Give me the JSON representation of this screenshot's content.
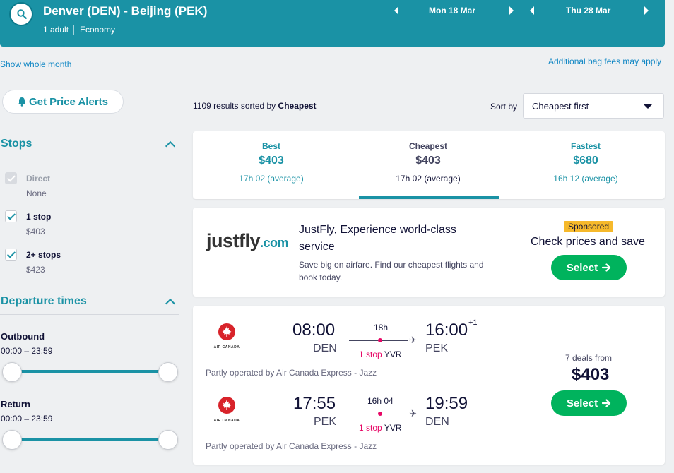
{
  "header": {
    "route": "Denver (DEN) - Beijing (PEK)",
    "passengers": "1 adult",
    "cabin": "Economy",
    "outbound_date": "Mon 18 Mar",
    "return_date": "Thu 28 Mar"
  },
  "links": {
    "show_whole_month": "Show whole month",
    "bag_fees": "Additional bag fees may apply"
  },
  "price_alerts": {
    "label": "Get Price Alerts"
  },
  "filters": {
    "stops": {
      "title": "Stops",
      "options": [
        {
          "label": "Direct",
          "price": "None",
          "checked": true,
          "disabled": true
        },
        {
          "label": "1 stop",
          "price": "$403",
          "checked": true,
          "disabled": false
        },
        {
          "label": "2+ stops",
          "price": "$423",
          "checked": true,
          "disabled": false
        }
      ]
    },
    "departure": {
      "title": "Departure times",
      "outbound_label": "Outbound",
      "outbound_range": "00:00 – 23:59",
      "return_label": "Return",
      "return_range": "00:00 – 23:59"
    }
  },
  "results": {
    "count_text": "1109 results sorted by",
    "sorted_by": "Cheapest",
    "sort_label": "Sort by",
    "sort_value": "Cheapest first"
  },
  "tabs": [
    {
      "label": "Best",
      "price": "$403",
      "duration": "17h 02 (average)"
    },
    {
      "label": "Cheapest",
      "price": "$403",
      "duration": "17h 02 (average)"
    },
    {
      "label": "Fastest",
      "price": "$680",
      "duration": "16h 12 (average)"
    }
  ],
  "ad": {
    "logo_main": "justfly",
    "logo_suffix": ".com",
    "title": "JustFly, Experience world-class service",
    "description": "Save big on airfare. Find our cheapest flights and book today.",
    "badge": "Sponsored",
    "cta_text": "Check prices and save",
    "button_label": "Select"
  },
  "flight": {
    "airline_name": "AIR CANADA",
    "legs": [
      {
        "depart_time": "08:00",
        "depart_code": "DEN",
        "arrive_time": "16:00",
        "arrive_offset": "+1",
        "arrive_code": "PEK",
        "duration": "18h",
        "stops": "1 stop",
        "via": "YVR",
        "operated_by": "Partly operated by Air Canada Express - Jazz"
      },
      {
        "depart_time": "17:55",
        "depart_code": "PEK",
        "arrive_time": "19:59",
        "arrive_offset": "",
        "arrive_code": "DEN",
        "duration": "16h 04",
        "stops": "1 stop",
        "via": "YVR",
        "operated_by": "Partly operated by Air Canada Express - Jazz"
      }
    ],
    "deals": "7 deals from",
    "price": "$403",
    "button_label": "Select"
  },
  "colors": {
    "brand": "#1a92a5",
    "cta": "#00b35d",
    "stop": "#e70866",
    "sponsored": "#f6b92b"
  }
}
